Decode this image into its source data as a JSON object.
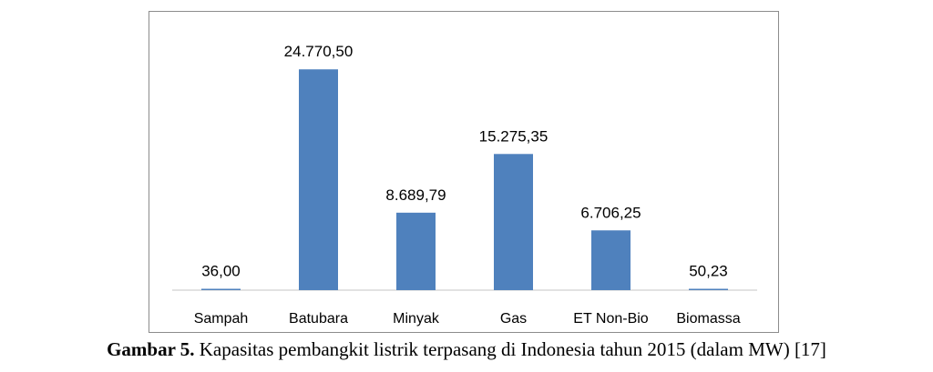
{
  "caption": {
    "label": "Gambar 5.",
    "text": " Kapasitas pembangkit listrik terpasang di Indonesia tahun 2015 (dalam MW) [17]"
  },
  "chart_data": {
    "type": "bar",
    "categories": [
      "Sampah",
      "Batubara",
      "Minyak",
      "Gas",
      "ET Non-Bio",
      "Biomassa"
    ],
    "values": [
      36.0,
      24770.5,
      8689.79,
      15275.35,
      6706.25,
      50.23
    ],
    "data_labels": [
      "36,00",
      "24.770,50",
      "8.689,79",
      "15.275,35",
      "6.706,25",
      "50,23"
    ],
    "ylim": [
      0,
      25000
    ],
    "bar_color": "#4f81bd",
    "axis_color": "#d9d9d9",
    "grid": false,
    "legend": "none"
  }
}
